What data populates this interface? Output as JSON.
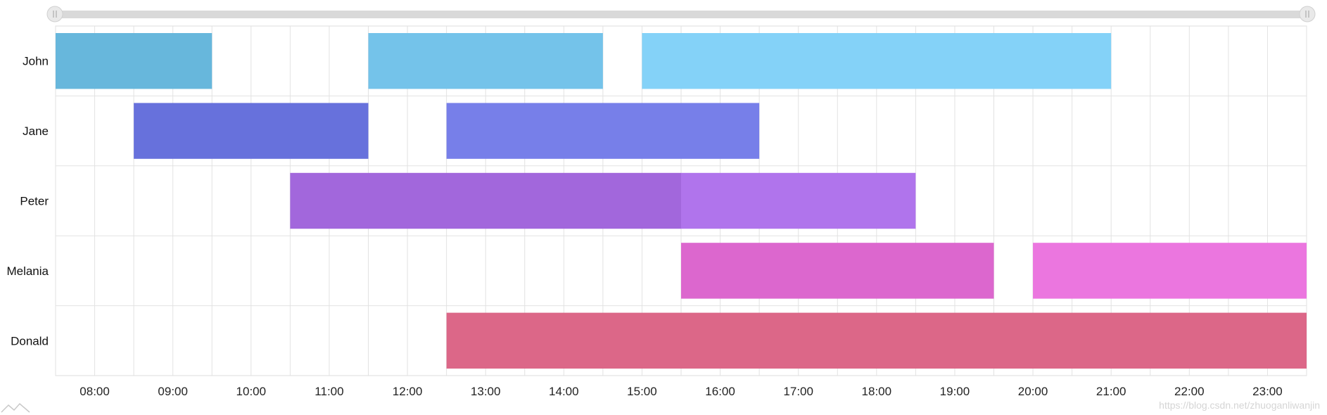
{
  "chart_data": {
    "type": "gantt",
    "categories": [
      "John",
      "Jane",
      "Peter",
      "Melania",
      "Donald"
    ],
    "x_ticks": [
      "08:00",
      "09:00",
      "10:00",
      "11:00",
      "12:00",
      "13:00",
      "14:00",
      "15:00",
      "16:00",
      "17:00",
      "18:00",
      "19:00",
      "20:00",
      "21:00",
      "22:00",
      "23:00"
    ],
    "x_range": [
      "07:30",
      "23:30"
    ],
    "grid": true,
    "scrollbar": true,
    "tasks": [
      {
        "category": "John",
        "start": "07:30",
        "end": "09:30",
        "color": "#67b7dc"
      },
      {
        "category": "John",
        "start": "11:30",
        "end": "14:30",
        "color": "#74c3ea"
      },
      {
        "category": "John",
        "start": "15:00",
        "end": "21:00",
        "color": "#84d2f8"
      },
      {
        "category": "Jane",
        "start": "08:30",
        "end": "11:30",
        "color": "#6771dc"
      },
      {
        "category": "Jane",
        "start": "12:30",
        "end": "16:30",
        "color": "#777fe9"
      },
      {
        "category": "Peter",
        "start": "10:30",
        "end": "15:30",
        "color": "#a267dc"
      },
      {
        "category": "Peter",
        "start": "15:30",
        "end": "18:30",
        "color": "#b074ec"
      },
      {
        "category": "Melania",
        "start": "15:30",
        "end": "19:30",
        "color": "#dc67ce"
      },
      {
        "category": "Melania",
        "start": "20:00",
        "end": "23:30",
        "color": "#eb76df"
      },
      {
        "category": "Donald",
        "start": "12:30",
        "end": "23:30",
        "color": "#dc6788"
      }
    ]
  },
  "watermark": "https://blog.csdn.net/zhuoganliwanjin"
}
